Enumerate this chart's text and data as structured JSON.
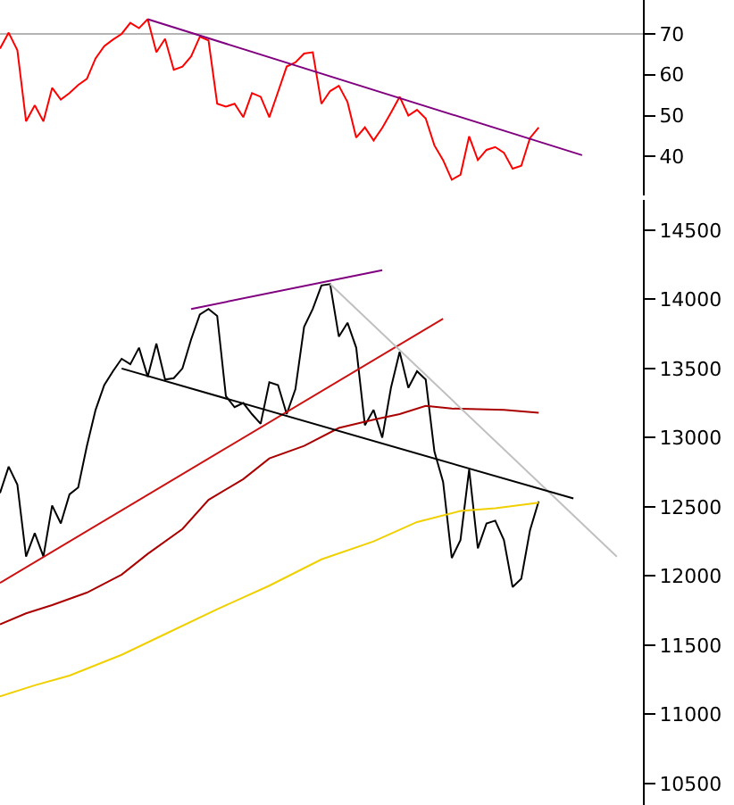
{
  "chart_data": [
    {
      "type": "line",
      "categories": [
        null,
        null,
        null,
        null,
        null,
        null,
        null,
        null,
        null,
        null,
        null,
        null,
        null,
        null,
        null,
        null,
        null,
        null,
        null,
        null,
        null,
        null,
        null,
        null,
        null,
        null,
        null,
        null,
        null,
        null,
        null,
        null,
        null,
        null,
        null,
        null,
        null,
        null,
        null,
        null,
        null,
        null,
        null,
        null,
        null,
        null,
        null,
        null,
        null,
        null,
        null,
        null,
        null,
        null,
        null,
        null,
        null,
        null,
        null,
        null,
        null,
        null,
        null,
        null,
        null,
        null,
        null,
        null,
        null,
        null,
        null,
        null,
        null,
        null,
        null
      ],
      "ylim": [
        30.4,
        78.3
      ],
      "yticks": [
        40,
        50,
        60,
        70
      ],
      "tick_labels": "y",
      "grid": false,
      "ref_lines": [
        {
          "axis": "y",
          "value": 70,
          "color": "#b4b4b4"
        }
      ],
      "series": [
        {
          "color": "#ff0000",
          "values": [
            66.4,
            70.3,
            66,
            48.6,
            52.5,
            48.6,
            56.8,
            53.9,
            55.5,
            57.5,
            59,
            64,
            67,
            68.6,
            70,
            72.7,
            71.4,
            73.6,
            65.5,
            68.8,
            61.2,
            62,
            64.5,
            69.3,
            68.4,
            52.9,
            52.2,
            52.9,
            49.6,
            55.5,
            54.6,
            49.6,
            55.8,
            62,
            63,
            65.2,
            65.5,
            52.9,
            56,
            57.3,
            53.3,
            44.6,
            47.1,
            43.9,
            47,
            50.7,
            54.6,
            50,
            51.4,
            49.3,
            42.7,
            39.1,
            34.3,
            35.5,
            44.9,
            39.1,
            41.6,
            42.3,
            40.9,
            37,
            37.7,
            44.5,
            47.1,
            null,
            null,
            null,
            null,
            null,
            null,
            null,
            null,
            null,
            null,
            null,
            null
          ]
        },
        {
          "color": "#800080",
          "values": [
            null,
            null,
            null,
            null,
            null,
            null,
            null,
            null,
            null,
            null,
            null,
            null,
            null,
            null,
            null,
            null,
            null,
            73.6,
            null,
            null,
            null,
            null,
            null,
            null,
            null,
            null,
            null,
            null,
            null,
            null,
            null,
            null,
            null,
            null,
            null,
            null,
            null,
            null,
            null,
            null,
            null,
            null,
            null,
            null,
            null,
            null,
            null,
            null,
            null,
            null,
            null,
            null,
            null,
            null,
            null,
            null,
            null,
            null,
            null,
            null,
            null,
            null,
            null,
            null,
            null,
            null,
            null,
            40.3,
            null,
            null,
            null,
            null,
            null,
            null,
            null
          ]
        }
      ]
    },
    {
      "type": "line",
      "categories": [
        null,
        null,
        null,
        null,
        null,
        null,
        null,
        null,
        null,
        null,
        null,
        null,
        null,
        null,
        null,
        null,
        null,
        null,
        null,
        null,
        null,
        null,
        null,
        null,
        null,
        null,
        null,
        null,
        null,
        null,
        null,
        null,
        null,
        null,
        null,
        null,
        null,
        null,
        null,
        null,
        null,
        null,
        null,
        null,
        null,
        null,
        null,
        null,
        null,
        null,
        null,
        null,
        null,
        null,
        null,
        null,
        null,
        null,
        null,
        null,
        null,
        null,
        null,
        null,
        null,
        null,
        null,
        null,
        null,
        null,
        null,
        null,
        null,
        null,
        null
      ],
      "ylim": [
        10345,
        14720
      ],
      "yticks": [
        10500,
        11000,
        11500,
        12000,
        12500,
        13000,
        13500,
        14000,
        14500
      ],
      "tick_labels": "y",
      "grid": false,
      "series": [
        {
          "color": "#000000",
          "values": [
            12600,
            12790,
            12660,
            12140,
            12310,
            12140,
            12510,
            12380,
            12590,
            12640,
            12940,
            13200,
            13380,
            13480,
            13570,
            13530,
            13650,
            13440,
            13680,
            13420,
            13430,
            13500,
            13710,
            13890,
            13930,
            13880,
            13300,
            13220,
            13250,
            13170,
            13100,
            13400,
            13380,
            13170,
            13350,
            13800,
            13930,
            14100,
            14110,
            13730,
            13830,
            13650,
            13090,
            13200,
            13000,
            13360,
            13620,
            13360,
            13480,
            13420,
            12900,
            12680,
            12130,
            12260,
            12770,
            12200,
            12380,
            12400,
            12260,
            11920,
            11980,
            12330,
            12540,
            null,
            null,
            null,
            null,
            null,
            null,
            null,
            null,
            null,
            null,
            null,
            null
          ]
        },
        {
          "color": "#cc1111",
          "values": [
            11950,
            null,
            null,
            null,
            null,
            null,
            null,
            null,
            null,
            null,
            null,
            null,
            null,
            null,
            null,
            null,
            null,
            null,
            null,
            null,
            null,
            null,
            null,
            null,
            null,
            null,
            null,
            null,
            null,
            null,
            null,
            null,
            null,
            null,
            null,
            null,
            null,
            null,
            null,
            null,
            null,
            null,
            null,
            null,
            null,
            null,
            null,
            null,
            null,
            null,
            null,
            13860,
            null,
            null,
            null,
            null,
            null,
            null,
            null,
            null,
            null,
            null,
            null,
            null,
            null,
            null,
            null,
            null,
            null,
            null,
            null,
            null,
            null,
            null,
            null
          ]
        },
        {
          "color": "#aa0000",
          "values": [
            11650,
            null,
            null,
            11730,
            null,
            null,
            11790,
            null,
            null,
            null,
            11880,
            null,
            null,
            null,
            12010,
            null,
            null,
            12160,
            null,
            null,
            null,
            12340,
            null,
            null,
            12550,
            null,
            null,
            null,
            12700,
            null,
            null,
            12850,
            null,
            null,
            null,
            12940,
            null,
            null,
            null,
            13070,
            null,
            null,
            null,
            13130,
            null,
            null,
            13170,
            null,
            null,
            13230,
            null,
            null,
            13210,
            null,
            null,
            null,
            null,
            null,
            13200,
            null,
            null,
            null,
            13180,
            null,
            null,
            null,
            null,
            null,
            null,
            null,
            null,
            null,
            null,
            null,
            null
          ]
        },
        {
          "color": "#f0d000",
          "values": [
            11130,
            null,
            null,
            null,
            11210,
            null,
            null,
            null,
            11280,
            null,
            null,
            null,
            null,
            null,
            11430,
            null,
            null,
            null,
            null,
            11580,
            null,
            null,
            null,
            null,
            null,
            11760,
            null,
            null,
            null,
            null,
            null,
            11930,
            null,
            null,
            null,
            null,
            null,
            12120,
            null,
            null,
            null,
            null,
            null,
            12250,
            null,
            null,
            null,
            null,
            12390,
            null,
            null,
            null,
            null,
            12470,
            null,
            null,
            null,
            12490,
            null,
            null,
            null,
            null,
            12530,
            null,
            null,
            null,
            null,
            null,
            null,
            null,
            null,
            null,
            null,
            null,
            null
          ]
        },
        {
          "color": "#c0c0c0",
          "values": [
            null,
            null,
            null,
            null,
            null,
            null,
            null,
            null,
            null,
            null,
            null,
            null,
            null,
            null,
            null,
            null,
            null,
            null,
            null,
            null,
            null,
            null,
            null,
            null,
            null,
            null,
            null,
            null,
            null,
            null,
            null,
            null,
            null,
            null,
            null,
            null,
            null,
            null,
            14110,
            null,
            null,
            null,
            null,
            null,
            null,
            null,
            null,
            null,
            null,
            null,
            null,
            null,
            null,
            null,
            null,
            null,
            null,
            null,
            null,
            null,
            null,
            null,
            null,
            null,
            null,
            null,
            null,
            null,
            null,
            null,
            null,
            12140,
            null,
            null,
            null
          ]
        },
        {
          "color": "#000000",
          "values": [
            null,
            null,
            null,
            null,
            null,
            null,
            null,
            null,
            null,
            null,
            null,
            null,
            null,
            null,
            13500,
            null,
            null,
            null,
            null,
            null,
            null,
            null,
            null,
            null,
            null,
            null,
            null,
            null,
            null,
            null,
            null,
            null,
            null,
            null,
            null,
            null,
            null,
            null,
            null,
            null,
            null,
            null,
            null,
            null,
            null,
            null,
            null,
            null,
            null,
            null,
            null,
            null,
            null,
            null,
            null,
            null,
            null,
            null,
            null,
            null,
            null,
            null,
            null,
            null,
            null,
            null,
            12560,
            null,
            null,
            null,
            null,
            null,
            null,
            null,
            null
          ]
        },
        {
          "color": "#800080",
          "values": [
            null,
            null,
            null,
            null,
            null,
            null,
            null,
            null,
            null,
            null,
            null,
            null,
            null,
            null,
            null,
            null,
            null,
            null,
            null,
            null,
            null,
            null,
            13930,
            null,
            null,
            null,
            null,
            null,
            null,
            null,
            null,
            null,
            null,
            null,
            null,
            null,
            null,
            null,
            null,
            null,
            null,
            null,
            null,
            null,
            14210,
            null,
            null,
            null,
            null,
            null,
            null,
            null,
            null,
            null,
            null,
            null,
            null,
            null,
            null,
            null,
            null,
            null,
            null,
            null,
            null,
            null,
            null,
            null,
            null,
            null,
            null,
            null,
            null,
            null,
            null
          ]
        }
      ]
    }
  ]
}
